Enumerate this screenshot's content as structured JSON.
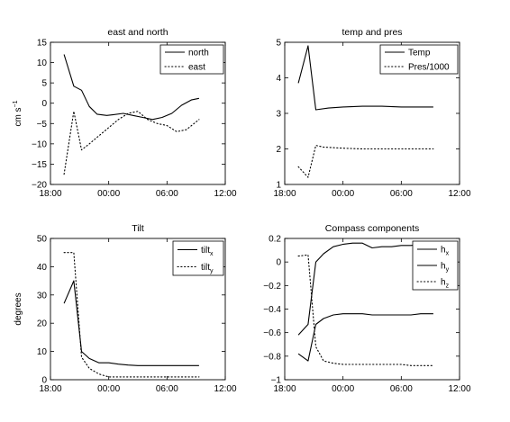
{
  "chart_data": [
    {
      "type": "line",
      "title": "east and north",
      "xlabel": "",
      "ylabel": "cm s",
      "ylabel_sup": "−1",
      "xlim": [
        18,
        36
      ],
      "ylim": [
        -20,
        15
      ],
      "xticks": [
        18,
        24,
        30,
        36
      ],
      "xticklabels": [
        "18:00",
        "00:00",
        "06:00",
        "12:00"
      ],
      "yticks": [
        -20,
        -15,
        -10,
        -5,
        0,
        5,
        10,
        15
      ],
      "yticklabels": [
        "−20",
        "−15",
        "−10",
        "−5",
        "0",
        "5",
        "10",
        "15"
      ],
      "legend": "top-right",
      "series": [
        {
          "name": "north",
          "style": "solid",
          "x": [
            19.4,
            20.4,
            21.2,
            22,
            22.8,
            23.8,
            24.5,
            25.5,
            26.5,
            27.5,
            28.5,
            29.5,
            30.5,
            31.5,
            32.5,
            33.3
          ],
          "y": [
            12,
            4.2,
            3.2,
            -0.8,
            -2.7,
            -3.0,
            -2.8,
            -2.5,
            -3.0,
            -3.5,
            -4.0,
            -3.5,
            -2.5,
            -0.5,
            0.8,
            1.2
          ]
        },
        {
          "name": "east",
          "style": "dotted",
          "x": [
            19.4,
            20.4,
            21.2,
            22,
            23,
            24,
            25,
            26,
            27,
            28,
            29,
            30,
            31,
            32,
            33.3
          ],
          "y": [
            -17.5,
            -2.0,
            -11.5,
            -10.0,
            -8.0,
            -6.0,
            -4.0,
            -2.5,
            -2.0,
            -4.0,
            -5.0,
            -5.5,
            -7.0,
            -6.5,
            -4.0
          ]
        }
      ]
    },
    {
      "type": "line",
      "title": "temp and pres",
      "xlabel": "",
      "ylabel": "",
      "xlim": [
        18,
        36
      ],
      "ylim": [
        1,
        5
      ],
      "xticks": [
        18,
        24,
        30,
        36
      ],
      "xticklabels": [
        "18:00",
        "00:00",
        "06:00",
        "12:00"
      ],
      "yticks": [
        1,
        2,
        3,
        4,
        5
      ],
      "yticklabels": [
        "1",
        "2",
        "3",
        "4",
        "5"
      ],
      "legend": "top-right",
      "series": [
        {
          "name": "Temp",
          "style": "solid",
          "x": [
            19.4,
            20.4,
            21.2,
            22.5,
            24,
            26,
            28,
            30,
            32,
            33.3
          ],
          "y": [
            3.85,
            4.9,
            3.1,
            3.15,
            3.18,
            3.2,
            3.2,
            3.18,
            3.18,
            3.18
          ]
        },
        {
          "name": "Pres/1000",
          "style": "dotted",
          "x": [
            19.4,
            20.4,
            21.2,
            22,
            24,
            26,
            28,
            30,
            32,
            33.3
          ],
          "y": [
            1.5,
            1.2,
            2.1,
            2.05,
            2.02,
            2.0,
            2.0,
            2.0,
            2.0,
            2.0
          ]
        }
      ]
    },
    {
      "type": "line",
      "title": "Tilt",
      "xlabel": "",
      "ylabel": "degrees",
      "xlim": [
        18,
        36
      ],
      "ylim": [
        0,
        50
      ],
      "xticks": [
        18,
        24,
        30,
        36
      ],
      "xticklabels": [
        "18:00",
        "00:00",
        "06:00",
        "12:00"
      ],
      "yticks": [
        0,
        10,
        20,
        30,
        40,
        50
      ],
      "yticklabels": [
        "0",
        "10",
        "20",
        "30",
        "40",
        "50"
      ],
      "legend": "top-right",
      "series": [
        {
          "name": "tilt",
          "sub": "x",
          "style": "solid",
          "x": [
            19.4,
            20.4,
            21.2,
            22,
            23,
            24,
            25,
            26,
            27,
            28,
            29,
            30,
            31,
            32,
            33.3
          ],
          "y": [
            27,
            35,
            10,
            7.5,
            6,
            6,
            5.5,
            5.2,
            5,
            5,
            5,
            5,
            5,
            5,
            5
          ]
        },
        {
          "name": "tilt",
          "sub": "y",
          "style": "dotted",
          "x": [
            19.4,
            20.4,
            21.2,
            22,
            23,
            24,
            25,
            26,
            27,
            28,
            29,
            30,
            31,
            32,
            33.3
          ],
          "y": [
            45,
            45,
            8,
            4,
            2,
            1,
            1,
            1,
            1,
            1,
            1,
            1,
            1,
            1,
            1
          ]
        }
      ]
    },
    {
      "type": "line",
      "title": "Compass components",
      "xlabel": "",
      "ylabel": "",
      "xlim": [
        18,
        36
      ],
      "ylim": [
        -1,
        0.2
      ],
      "xticks": [
        18,
        24,
        30,
        36
      ],
      "xticklabels": [
        "18:00",
        "00:00",
        "06:00",
        "12:00"
      ],
      "yticks": [
        -1,
        -0.8,
        -0.6,
        -0.4,
        -0.2,
        0,
        0.2
      ],
      "yticklabels": [
        "−1",
        "−0.8",
        "−0.6",
        "−0.4",
        "−0.2",
        "0",
        "0.2"
      ],
      "legend": "top-right",
      "series": [
        {
          "name": "h",
          "sub": "x",
          "style": "solid",
          "x": [
            19.4,
            20.4,
            21.2,
            22,
            23,
            24,
            25,
            26,
            27,
            28,
            29,
            30,
            31,
            32,
            33.3
          ],
          "y": [
            -0.62,
            -0.53,
            0.0,
            0.07,
            0.13,
            0.15,
            0.16,
            0.16,
            0.12,
            0.13,
            0.13,
            0.14,
            0.14,
            0.15,
            0.15
          ]
        },
        {
          "name": "h",
          "sub": "y",
          "style": "solid",
          "x": [
            19.4,
            20.4,
            21.2,
            22,
            23,
            24,
            25,
            26,
            27,
            28,
            29,
            30,
            31,
            32,
            33.3
          ],
          "y": [
            -0.78,
            -0.84,
            -0.53,
            -0.48,
            -0.45,
            -0.44,
            -0.44,
            -0.44,
            -0.45,
            -0.45,
            -0.45,
            -0.45,
            -0.45,
            -0.44,
            -0.44
          ]
        },
        {
          "name": "h",
          "sub": "z",
          "style": "dotted",
          "x": [
            19.4,
            20.4,
            21.2,
            22,
            23,
            24,
            25,
            26,
            27,
            28,
            29,
            30,
            31,
            32,
            33.3
          ],
          "y": [
            0.05,
            0.06,
            -0.72,
            -0.84,
            -0.86,
            -0.87,
            -0.87,
            -0.87,
            -0.87,
            -0.87,
            -0.87,
            -0.87,
            -0.88,
            -0.88,
            -0.88
          ]
        }
      ]
    }
  ]
}
